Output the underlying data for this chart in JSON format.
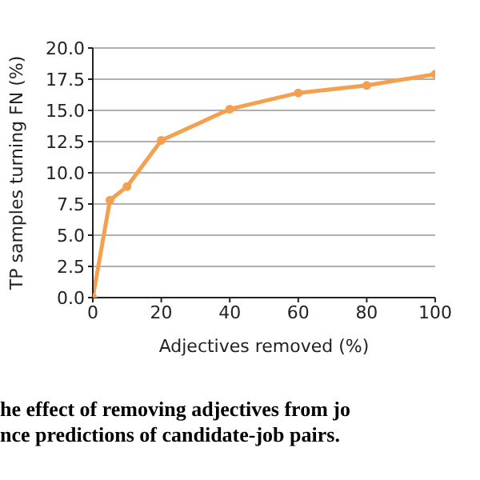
{
  "chart_data": {
    "type": "line",
    "xlabel": "Adjectives removed (%)",
    "ylabel": "TP samples turning FN (%)",
    "x": [
      0,
      5,
      10,
      20,
      40,
      60,
      80,
      100
    ],
    "series": [
      {
        "color": "#f5a04f",
        "values": [
          0,
          7.8,
          8.9,
          12.6,
          15.1,
          16.4,
          17.0,
          17.9
        ]
      }
    ],
    "xlim": [
      0,
      100
    ],
    "xticks": [
      0,
      20,
      40,
      60,
      80,
      100
    ],
    "ylim": [
      0,
      20
    ],
    "yticks": [
      {
        "value": 0,
        "label": "0.0"
      },
      {
        "value": 2.5,
        "label": "2.5"
      },
      {
        "value": 5,
        "label": "5.0"
      },
      {
        "value": 7.5,
        "label": "7.5"
      },
      {
        "value": 10,
        "label": "10.0"
      },
      {
        "value": 12.5,
        "label": "12.5"
      },
      {
        "value": 15,
        "label": "15.0"
      },
      {
        "value": 17.5,
        "label": "17.5"
      },
      {
        "value": 20,
        "label": "20.0"
      }
    ],
    "grid": "y",
    "marker": "circle",
    "line_style": "solid",
    "annotations": [
      "he effect of removing adjectives from jo",
      "nce predictions of candidate-job pairs."
    ]
  }
}
